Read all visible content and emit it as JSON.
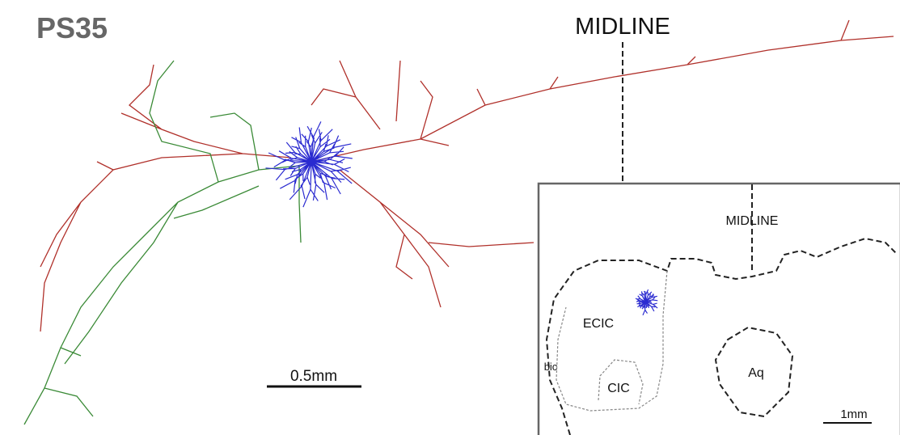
{
  "title": "PS35",
  "midline_label": "MIDLINE",
  "scale_bar": "0.5mm",
  "inset": {
    "midline_label": "MIDLINE",
    "regions": {
      "ecic": "ECIC",
      "cic": "CIC",
      "bic": "bic",
      "aq": "Aq"
    },
    "scale_bar": "1mm"
  }
}
